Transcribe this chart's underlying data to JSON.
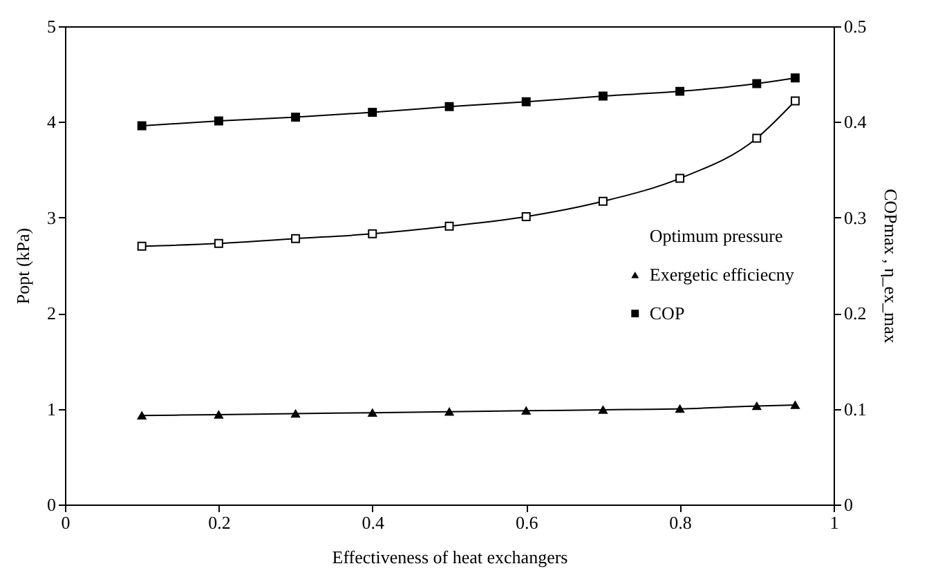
{
  "chart_data": {
    "type": "line",
    "xlabel": "Effectiveness of heat exchangers",
    "ylabel": "Popt (kPa)",
    "y2label": "COPmax , η_ex_max",
    "x": [
      0.1,
      0.2,
      0.3,
      0.4,
      0.5,
      0.6,
      0.7,
      0.8,
      0.9,
      0.95
    ],
    "series": [
      {
        "name": "Optimum pressure",
        "color": "#000000",
        "marker": "square",
        "values": [
          2.7,
          2.73,
          2.78,
          2.83,
          2.91,
          3.01,
          3.17,
          3.41,
          3.83,
          4.22
        ]
      },
      {
        "name": "Exergetic efficiecny",
        "color": "#000000",
        "marker": "triangle",
        "axis": "y2",
        "values": [
          0.093,
          0.094,
          0.095,
          0.096,
          0.097,
          0.098,
          0.099,
          0.1,
          0.103,
          0.104
        ]
      },
      {
        "name": "COP",
        "color": "#000000",
        "marker": "square",
        "axis": "y2",
        "values": [
          0.396,
          0.401,
          0.405,
          0.41,
          0.416,
          0.421,
          0.427,
          0.432,
          0.44,
          0.446
        ]
      }
    ],
    "xlim": [
      0,
      1
    ],
    "xticks": [
      0,
      0.2,
      0.4,
      0.6,
      0.8,
      1
    ],
    "ylim": [
      0,
      5
    ],
    "yticks": [
      0,
      1,
      2,
      3,
      4,
      5
    ],
    "y2lim": [
      0,
      0.5
    ],
    "y2ticks": [
      0,
      0.1,
      0.2,
      0.3,
      0.4,
      0.5
    ],
    "grid": false,
    "legend": "right",
    "line_style": "solid"
  }
}
